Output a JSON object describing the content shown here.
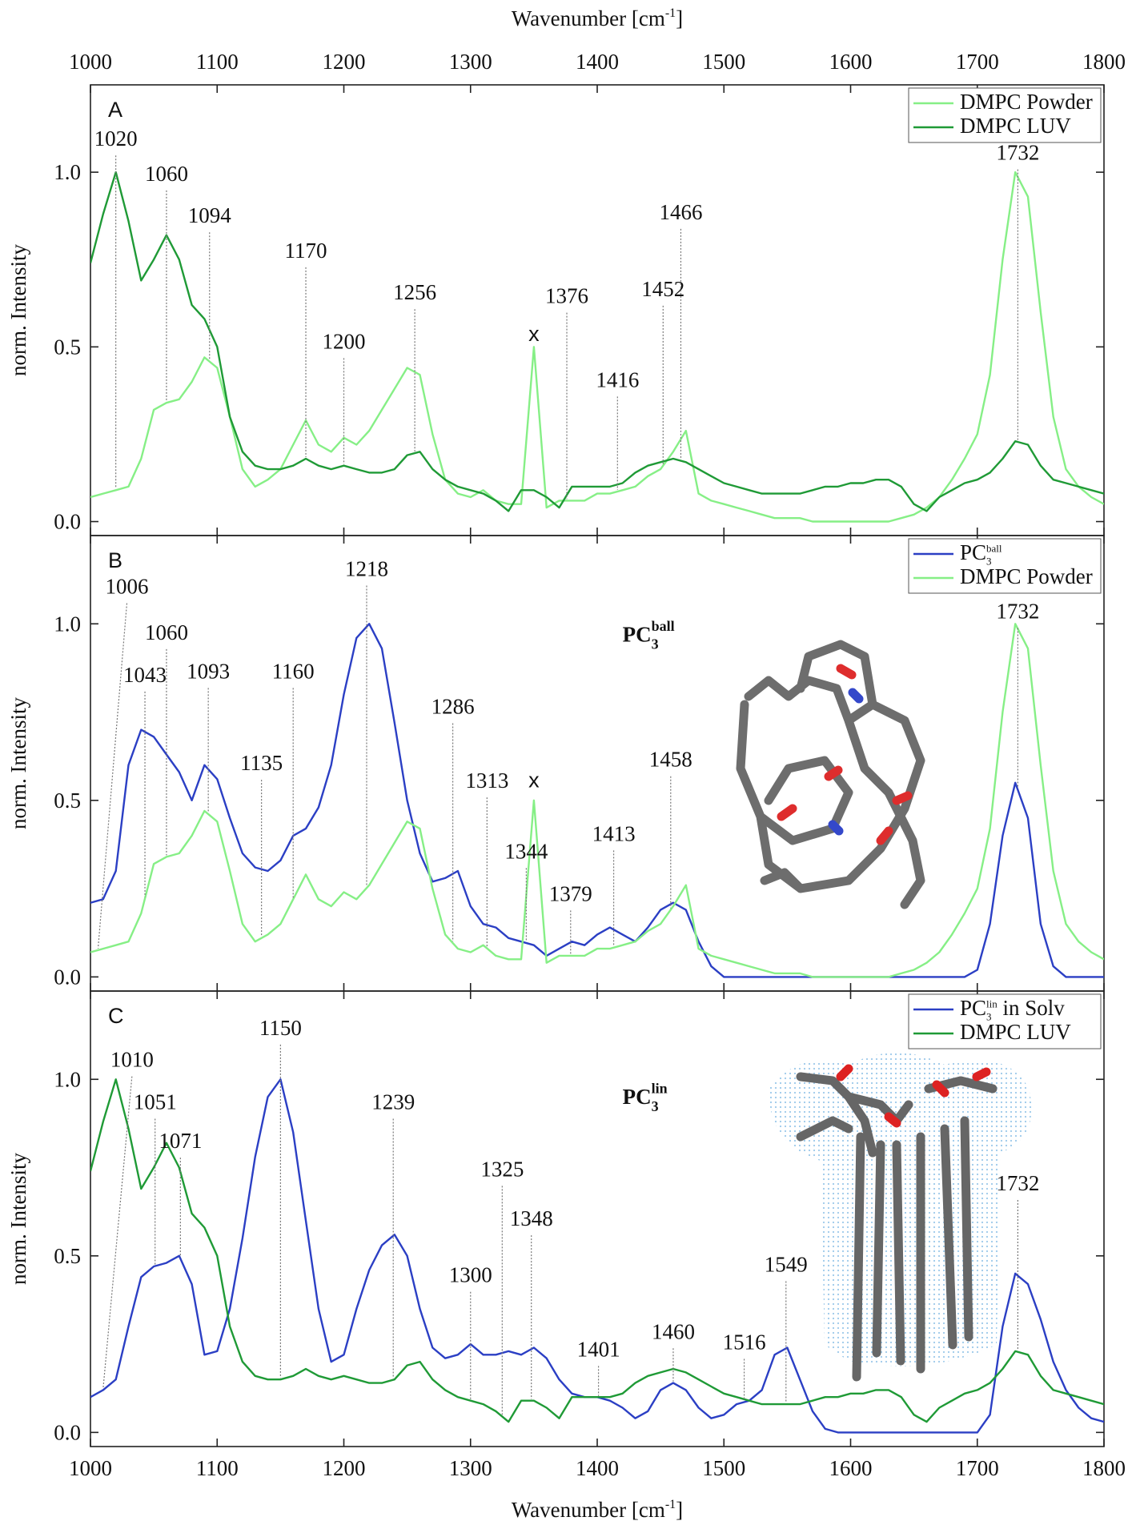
{
  "figure": {
    "x_label": {
      "text": "Wavenumber [cm",
      "sup": "-1",
      "end": "]"
    }
  },
  "chart_data": [
    {
      "type": "line",
      "panel_label": "A",
      "y_label": "norm. Intensity",
      "x": [
        1000,
        1010,
        1020,
        1030,
        1040,
        1050,
        1060,
        1070,
        1080,
        1090,
        1100,
        1110,
        1120,
        1130,
        1140,
        1150,
        1160,
        1170,
        1180,
        1190,
        1200,
        1210,
        1220,
        1230,
        1240,
        1250,
        1260,
        1270,
        1280,
        1290,
        1300,
        1310,
        1320,
        1330,
        1340,
        1350,
        1360,
        1370,
        1380,
        1390,
        1400,
        1410,
        1420,
        1430,
        1440,
        1450,
        1460,
        1470,
        1480,
        1490,
        1500,
        1510,
        1520,
        1530,
        1540,
        1550,
        1560,
        1570,
        1580,
        1590,
        1600,
        1610,
        1620,
        1630,
        1640,
        1650,
        1660,
        1670,
        1680,
        1690,
        1700,
        1710,
        1720,
        1730,
        1740,
        1750,
        1760,
        1770,
        1780,
        1790,
        1800
      ],
      "series": [
        {
          "name": "DMPC Powder",
          "color": "#86ef86",
          "values": [
            0.07,
            0.08,
            0.09,
            0.1,
            0.18,
            0.32,
            0.34,
            0.35,
            0.4,
            0.47,
            0.44,
            0.3,
            0.15,
            0.1,
            0.12,
            0.15,
            0.22,
            0.29,
            0.22,
            0.2,
            0.24,
            0.22,
            0.26,
            0.32,
            0.38,
            0.44,
            0.42,
            0.25,
            0.12,
            0.08,
            0.07,
            0.09,
            0.06,
            0.05,
            0.05,
            0.5,
            0.04,
            0.06,
            0.06,
            0.06,
            0.08,
            0.08,
            0.09,
            0.1,
            0.13,
            0.15,
            0.2,
            0.26,
            0.08,
            0.06,
            0.05,
            0.04,
            0.03,
            0.02,
            0.01,
            0.01,
            0.01,
            0,
            0,
            0,
            0,
            0,
            0,
            0,
            0.01,
            0.02,
            0.04,
            0.07,
            0.12,
            0.18,
            0.25,
            0.42,
            0.75,
            1.0,
            0.93,
            0.6,
            0.3,
            0.15,
            0.1,
            0.07,
            0.05
          ]
        },
        {
          "name": "DMPC LUV",
          "color": "#1f9a36",
          "values": [
            0.74,
            0.88,
            1.0,
            0.86,
            0.69,
            0.75,
            0.82,
            0.75,
            0.62,
            0.58,
            0.5,
            0.3,
            0.2,
            0.16,
            0.15,
            0.15,
            0.16,
            0.18,
            0.16,
            0.15,
            0.16,
            0.15,
            0.14,
            0.14,
            0.15,
            0.19,
            0.2,
            0.15,
            0.12,
            0.1,
            0.09,
            0.08,
            0.06,
            0.03,
            0.09,
            0.09,
            0.07,
            0.04,
            0.1,
            0.1,
            0.1,
            0.1,
            0.11,
            0.14,
            0.16,
            0.17,
            0.18,
            0.17,
            0.15,
            0.13,
            0.11,
            0.1,
            0.09,
            0.08,
            0.08,
            0.08,
            0.08,
            0.09,
            0.1,
            0.1,
            0.11,
            0.11,
            0.12,
            0.12,
            0.1,
            0.05,
            0.03,
            0.07,
            0.09,
            0.11,
            0.12,
            0.14,
            0.18,
            0.23,
            0.22,
            0.16,
            0.12,
            0.11,
            0.1,
            0.09,
            0.08
          ]
        }
      ],
      "xlim": [
        1000,
        1800
      ],
      "xticks": [
        1000,
        1100,
        1200,
        1300,
        1400,
        1500,
        1600,
        1700,
        1800
      ],
      "ylim": [
        -0.04,
        1.25
      ],
      "yticks": [
        {
          "value": 0,
          "label": "0.0"
        },
        {
          "value": 0.5,
          "label": "0.5"
        },
        {
          "value": 1,
          "label": "1.0"
        }
      ],
      "legend": "upper right",
      "peaks": [
        {
          "x": 1020,
          "y": 1.08
        },
        {
          "x": 1060,
          "y": 0.98
        },
        {
          "x": 1094,
          "y": 0.86
        },
        {
          "x": 1170,
          "y": 0.76
        },
        {
          "x": 1200,
          "y": 0.5
        },
        {
          "x": 1256,
          "y": 0.64
        },
        {
          "x": 1376,
          "y": 0.63
        },
        {
          "x": 1416,
          "y": 0.39
        },
        {
          "x": 1452,
          "y": 0.65
        },
        {
          "x": 1466,
          "y": 0.87
        },
        {
          "x": 1732,
          "y": 1.04
        }
      ],
      "markers": [
        {
          "text": "x",
          "x": 1350,
          "y": 0.54
        }
      ]
    },
    {
      "type": "line",
      "panel_label": "B",
      "y_label": "norm. Intensity",
      "x": [
        1000,
        1010,
        1020,
        1030,
        1040,
        1050,
        1060,
        1070,
        1080,
        1090,
        1100,
        1110,
        1120,
        1130,
        1140,
        1150,
        1160,
        1170,
        1180,
        1190,
        1200,
        1210,
        1220,
        1230,
        1240,
        1250,
        1260,
        1270,
        1280,
        1290,
        1300,
        1310,
        1320,
        1330,
        1340,
        1350,
        1360,
        1370,
        1380,
        1390,
        1400,
        1410,
        1420,
        1430,
        1440,
        1450,
        1460,
        1470,
        1480,
        1490,
        1500,
        1510,
        1520,
        1530,
        1540,
        1550,
        1560,
        1570,
        1580,
        1590,
        1600,
        1610,
        1620,
        1630,
        1640,
        1650,
        1660,
        1670,
        1680,
        1690,
        1700,
        1710,
        1720,
        1730,
        1740,
        1750,
        1760,
        1770,
        1780,
        1790,
        1800
      ],
      "series": [
        {
          "name": {
            "base": "PC",
            "sub": "3",
            "sup": "ball"
          },
          "color": "#2b3fc4",
          "values": [
            0.21,
            0.22,
            0.3,
            0.6,
            0.7,
            0.68,
            0.63,
            0.58,
            0.5,
            0.6,
            0.56,
            0.45,
            0.35,
            0.31,
            0.3,
            0.33,
            0.4,
            0.42,
            0.48,
            0.6,
            0.8,
            0.96,
            1.0,
            0.93,
            0.72,
            0.5,
            0.35,
            0.27,
            0.28,
            0.3,
            0.2,
            0.15,
            0.14,
            0.11,
            0.1,
            0.09,
            0.06,
            0.08,
            0.1,
            0.09,
            0.12,
            0.14,
            0.12,
            0.1,
            0.14,
            0.19,
            0.21,
            0.19,
            0.1,
            0.03,
            0,
            0,
            0,
            0,
            0,
            0,
            0,
            0,
            0,
            0,
            0,
            0,
            0,
            0,
            0,
            0,
            0,
            0,
            0,
            0,
            0.02,
            0.15,
            0.4,
            0.55,
            0.45,
            0.15,
            0.03,
            0,
            0,
            0,
            0
          ]
        },
        {
          "name": "DMPC Powder",
          "color": "#86ef86",
          "values": [
            0.07,
            0.08,
            0.09,
            0.1,
            0.18,
            0.32,
            0.34,
            0.35,
            0.4,
            0.47,
            0.44,
            0.3,
            0.15,
            0.1,
            0.12,
            0.15,
            0.22,
            0.29,
            0.22,
            0.2,
            0.24,
            0.22,
            0.26,
            0.32,
            0.38,
            0.44,
            0.42,
            0.25,
            0.12,
            0.08,
            0.07,
            0.09,
            0.06,
            0.05,
            0.05,
            0.5,
            0.04,
            0.06,
            0.06,
            0.06,
            0.08,
            0.08,
            0.09,
            0.1,
            0.13,
            0.15,
            0.2,
            0.26,
            0.08,
            0.06,
            0.05,
            0.04,
            0.03,
            0.02,
            0.01,
            0.01,
            0.01,
            0,
            0,
            0,
            0,
            0,
            0,
            0,
            0.01,
            0.02,
            0.04,
            0.07,
            0.12,
            0.18,
            0.25,
            0.42,
            0.75,
            1.0,
            0.93,
            0.6,
            0.3,
            0.15,
            0.1,
            0.07,
            0.05
          ]
        }
      ],
      "xlim": [
        1000,
        1800
      ],
      "xticks": [
        1000,
        1100,
        1200,
        1300,
        1400,
        1500,
        1600,
        1700,
        1800
      ],
      "ylim": [
        -0.04,
        1.25
      ],
      "yticks": [
        {
          "value": 0,
          "label": "0.0"
        },
        {
          "value": 0.5,
          "label": "0.5"
        },
        {
          "value": 1,
          "label": "1.0"
        }
      ],
      "legend": "upper right",
      "peaks": [
        {
          "x": 1006,
          "y": 1.09
        },
        {
          "x": 1043,
          "y": 0.84
        },
        {
          "x": 1060,
          "y": 0.96
        },
        {
          "x": 1093,
          "y": 0.85
        },
        {
          "x": 1135,
          "y": 0.59
        },
        {
          "x": 1160,
          "y": 0.85
        },
        {
          "x": 1218,
          "y": 1.14
        },
        {
          "x": 1286,
          "y": 0.75
        },
        {
          "x": 1313,
          "y": 0.54
        },
        {
          "x": 1344,
          "y": 0.34
        },
        {
          "x": 1379,
          "y": 0.22
        },
        {
          "x": 1413,
          "y": 0.39
        },
        {
          "x": 1458,
          "y": 0.6
        },
        {
          "x": 1732,
          "y": 1.02
        }
      ],
      "markers": [
        {
          "text": "x",
          "x": 1350,
          "y": 0.56
        }
      ],
      "inset_label": {
        "base": "PC",
        "sub": "3",
        "sup": "ball",
        "x": 1420,
        "y": 0.95
      }
    },
    {
      "type": "line",
      "panel_label": "C",
      "y_label": "norm. Intensity",
      "x": [
        1000,
        1010,
        1020,
        1030,
        1040,
        1050,
        1060,
        1070,
        1080,
        1090,
        1100,
        1110,
        1120,
        1130,
        1140,
        1150,
        1160,
        1170,
        1180,
        1190,
        1200,
        1210,
        1220,
        1230,
        1240,
        1250,
        1260,
        1270,
        1280,
        1290,
        1300,
        1310,
        1320,
        1330,
        1340,
        1350,
        1360,
        1370,
        1380,
        1390,
        1400,
        1410,
        1420,
        1430,
        1440,
        1450,
        1460,
        1470,
        1480,
        1490,
        1500,
        1510,
        1520,
        1530,
        1540,
        1550,
        1560,
        1570,
        1580,
        1590,
        1600,
        1610,
        1620,
        1630,
        1640,
        1650,
        1660,
        1670,
        1680,
        1690,
        1700,
        1710,
        1720,
        1730,
        1740,
        1750,
        1760,
        1770,
        1780,
        1790,
        1800
      ],
      "series": [
        {
          "name": {
            "base": "PC",
            "sub": "3",
            "sup": "lin",
            "rest": " in Solv"
          },
          "color": "#2b3fc4",
          "values": [
            0.1,
            0.12,
            0.15,
            0.3,
            0.44,
            0.47,
            0.48,
            0.5,
            0.42,
            0.22,
            0.23,
            0.35,
            0.55,
            0.78,
            0.95,
            1.0,
            0.85,
            0.6,
            0.35,
            0.2,
            0.22,
            0.35,
            0.46,
            0.53,
            0.56,
            0.5,
            0.35,
            0.24,
            0.21,
            0.22,
            0.25,
            0.22,
            0.22,
            0.23,
            0.22,
            0.24,
            0.21,
            0.15,
            0.11,
            0.1,
            0.1,
            0.09,
            0.07,
            0.04,
            0.06,
            0.12,
            0.14,
            0.12,
            0.07,
            0.04,
            0.05,
            0.08,
            0.09,
            0.12,
            0.22,
            0.24,
            0.15,
            0.06,
            0.01,
            0,
            0,
            0,
            0,
            0,
            0,
            0,
            0,
            0,
            0,
            0,
            0,
            0.05,
            0.3,
            0.45,
            0.42,
            0.32,
            0.2,
            0.12,
            0.07,
            0.04,
            0.03
          ]
        },
        {
          "name": "DMPC LUV",
          "color": "#1f9a36",
          "values": [
            0.74,
            0.88,
            1.0,
            0.86,
            0.69,
            0.75,
            0.82,
            0.75,
            0.62,
            0.58,
            0.5,
            0.3,
            0.2,
            0.16,
            0.15,
            0.15,
            0.16,
            0.18,
            0.16,
            0.15,
            0.16,
            0.15,
            0.14,
            0.14,
            0.15,
            0.19,
            0.2,
            0.15,
            0.12,
            0.1,
            0.09,
            0.08,
            0.06,
            0.03,
            0.09,
            0.09,
            0.07,
            0.04,
            0.1,
            0.1,
            0.1,
            0.1,
            0.11,
            0.14,
            0.16,
            0.17,
            0.18,
            0.17,
            0.15,
            0.13,
            0.11,
            0.1,
            0.09,
            0.08,
            0.08,
            0.08,
            0.08,
            0.09,
            0.1,
            0.1,
            0.11,
            0.11,
            0.12,
            0.12,
            0.1,
            0.05,
            0.03,
            0.07,
            0.09,
            0.11,
            0.12,
            0.14,
            0.18,
            0.23,
            0.22,
            0.16,
            0.12,
            0.11,
            0.1,
            0.09,
            0.08
          ]
        }
      ],
      "xlim": [
        1000,
        1800
      ],
      "xticks": [
        1000,
        1100,
        1200,
        1300,
        1400,
        1500,
        1600,
        1700,
        1800
      ],
      "ylim": [
        -0.04,
        1.25
      ],
      "yticks": [
        {
          "value": 0,
          "label": "0.0"
        },
        {
          "value": 0.5,
          "label": "0.5"
        },
        {
          "value": 1,
          "label": "1.0"
        }
      ],
      "legend": "upper right",
      "peaks": [
        {
          "x": 1010,
          "y": 1.04
        },
        {
          "x": 1051,
          "y": 0.92
        },
        {
          "x": 1071,
          "y": 0.81
        },
        {
          "x": 1150,
          "y": 1.13
        },
        {
          "x": 1239,
          "y": 0.92
        },
        {
          "x": 1300,
          "y": 0.43
        },
        {
          "x": 1325,
          "y": 0.73
        },
        {
          "x": 1348,
          "y": 0.59
        },
        {
          "x": 1401,
          "y": 0.22
        },
        {
          "x": 1460,
          "y": 0.27
        },
        {
          "x": 1516,
          "y": 0.24
        },
        {
          "x": 1549,
          "y": 0.46
        },
        {
          "x": 1732,
          "y": 0.69
        }
      ],
      "inset_label": {
        "base": "PC",
        "sub": "3",
        "sup": "lin",
        "x": 1420,
        "y": 0.93
      }
    }
  ]
}
